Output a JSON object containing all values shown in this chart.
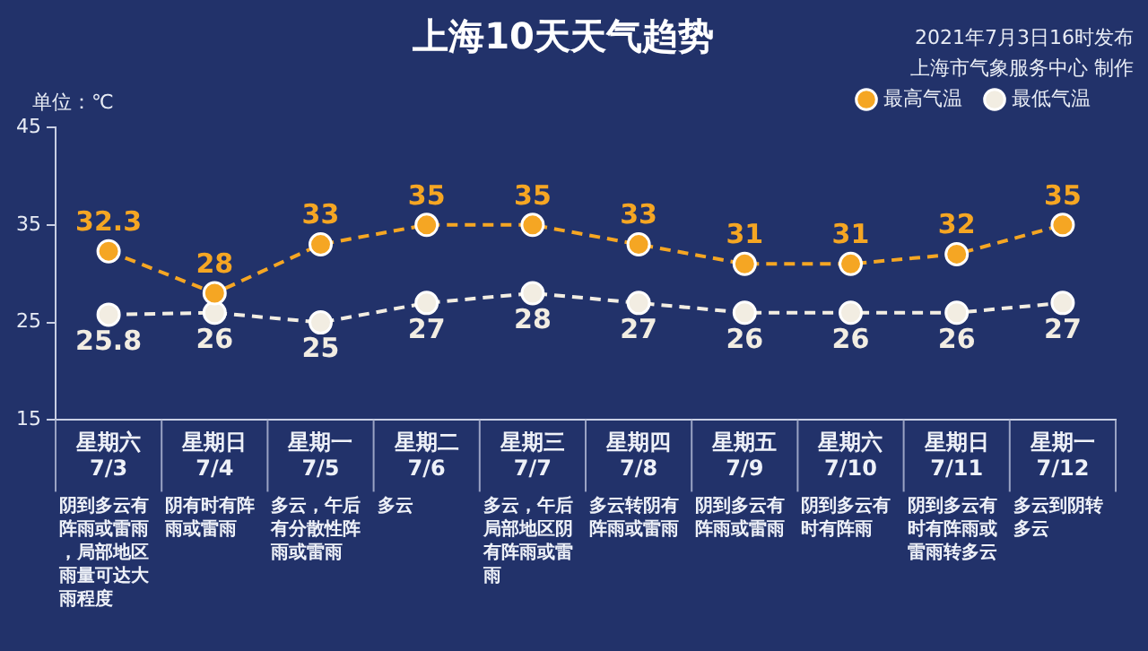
{
  "chart_data": {
    "type": "line",
    "title": "上海10天天气趋势",
    "ylabel": "单位：℃",
    "categories": [
      "星期六\n7/3",
      "星期日\n7/4",
      "星期一\n7/5",
      "星期二\n7/6",
      "星期三\n7/7",
      "星期四\n7/8",
      "星期五\n7/9",
      "星期六\n7/10",
      "星期日\n7/11",
      "星期一\n7/12"
    ],
    "series": [
      {
        "name": "最高气温",
        "color": "#f5a623",
        "values": [
          32.3,
          28,
          33,
          35,
          35,
          33,
          31,
          31,
          32,
          35
        ]
      },
      {
        "name": "最低气温",
        "color": "#f2ede2",
        "values": [
          25.8,
          26,
          25,
          27,
          28,
          27,
          26,
          26,
          26,
          27
        ]
      }
    ],
    "ylim": [
      15,
      45
    ],
    "yticks": [
      15,
      25,
      35,
      45
    ],
    "grid": false,
    "legend": "top right",
    "marker": "circle",
    "line_style": "dashed",
    "data_labels": true,
    "annotations": [
      "2021年7月3日16时发布",
      "上海市气象服务中心 制作",
      "阴到多云有阵雨或雷雨，局部地区雨量可达大雨程度",
      "阴有时有阵雨或雷雨",
      "多云，午后有分散性阵雨或雷雨",
      "多云",
      "多云，午后局部地区阴有阵雨或雷雨",
      "多云转阴有阵雨或雷雨",
      "阴到多云有阵雨或雷雨",
      "阴到多云有时有阵雨",
      "阴到多云有时有阵雨或雷雨转多云",
      "多云到阴转多云"
    ]
  }
}
